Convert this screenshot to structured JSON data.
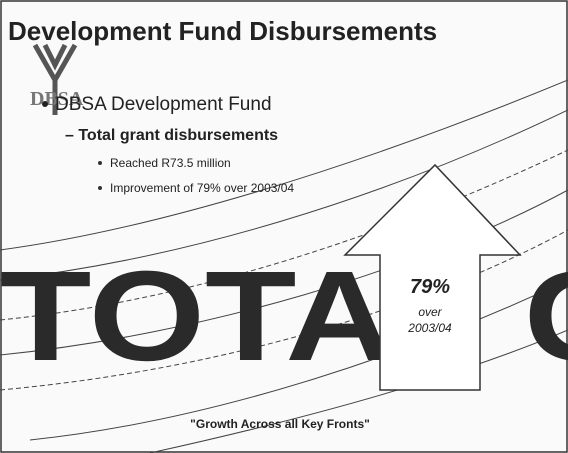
{
  "header": {
    "title": "Development Fund Disbursements"
  },
  "logo": {
    "label": "DBSA"
  },
  "bullets": {
    "main": "DBSA Development Fund",
    "sub": "Total grant disbursements",
    "points": [
      "Reached R73.5 million",
      "Improvement of 79% over 2003/04"
    ]
  },
  "banner": "TOTAL G",
  "arrow": {
    "figure": "79%",
    "line1": "over",
    "line2": "2003/04"
  },
  "footer": "\"Growth Across all Key Fronts\""
}
